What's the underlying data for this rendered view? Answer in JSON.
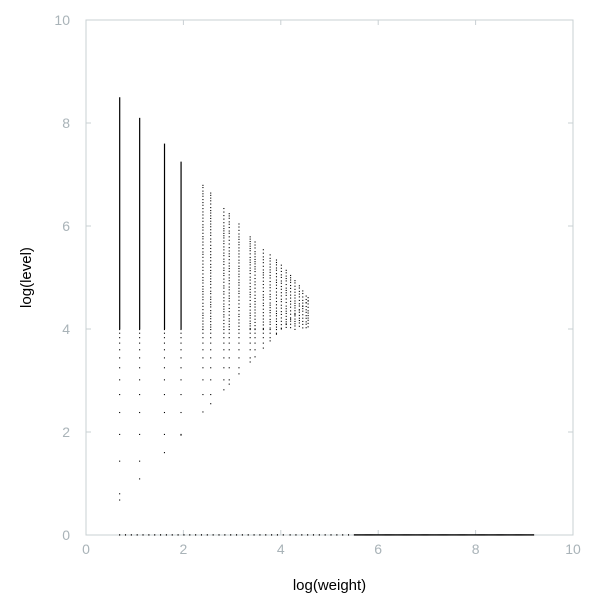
{
  "chart_data": {
    "type": "scatter",
    "title": "",
    "xlabel": "log(weight)",
    "ylabel": "log(level)",
    "xlim": [
      0,
      10
    ],
    "ylim": [
      0,
      10
    ],
    "x_ticks": [
      "0",
      "2",
      "4",
      "6",
      "8",
      "10"
    ],
    "y_ticks": [
      "0",
      "2",
      "4",
      "6",
      "8",
      "10"
    ],
    "grid": false,
    "legend": "none",
    "colors": {
      "points": "#000000",
      "frame": "#c9d0d3",
      "tick_labels": "#a9b3b8"
    },
    "series": [
      {
        "columns": [
          {
            "x": 0.69,
            "ymin": 0.69,
            "ymax": 8.5
          },
          {
            "x": 1.1,
            "ymin": 1.1,
            "ymax": 8.1
          },
          {
            "x": 1.61,
            "ymin": 1.61,
            "ymax": 7.6
          },
          {
            "x": 1.95,
            "ymin": 1.95,
            "ymax": 7.25
          },
          {
            "x": 2.4,
            "ymin": 2.4,
            "ymax": 6.8
          },
          {
            "x": 2.56,
            "ymin": 2.56,
            "ymax": 6.65
          },
          {
            "x": 2.83,
            "ymin": 2.83,
            "ymax": 6.35
          },
          {
            "x": 2.94,
            "ymin": 2.94,
            "ymax": 6.25
          },
          {
            "x": 3.14,
            "ymin": 3.14,
            "ymax": 6.05
          },
          {
            "x": 3.37,
            "ymin": 3.37,
            "ymax": 5.8
          },
          {
            "x": 3.47,
            "ymin": 3.47,
            "ymax": 5.7
          },
          {
            "x": 3.64,
            "ymin": 3.64,
            "ymax": 5.55
          },
          {
            "x": 3.78,
            "ymin": 3.78,
            "ymax": 5.45
          },
          {
            "x": 3.91,
            "ymin": 3.91,
            "ymax": 5.35
          },
          {
            "x": 4.01,
            "ymin": 4.01,
            "ymax": 5.25
          },
          {
            "x": 4.11,
            "ymin": 4.11,
            "ymax": 5.15
          },
          {
            "x": 4.2,
            "ymin": 4.2,
            "ymax": 5.05
          },
          {
            "x": 4.29,
            "ymin": 4.29,
            "ymax": 4.95
          },
          {
            "x": 4.38,
            "ymin": 4.38,
            "ymax": 4.85
          },
          {
            "x": 4.45,
            "ymin": 4.45,
            "ymax": 4.75
          },
          {
            "x": 4.52,
            "ymin": 4.52,
            "ymax": 4.65
          },
          {
            "x": 4.56,
            "ymin": 4.56,
            "ymax": 4.62
          }
        ],
        "baseline": {
          "y": 0,
          "xmin": 0.69,
          "xmax": 9.2
        }
      }
    ]
  }
}
